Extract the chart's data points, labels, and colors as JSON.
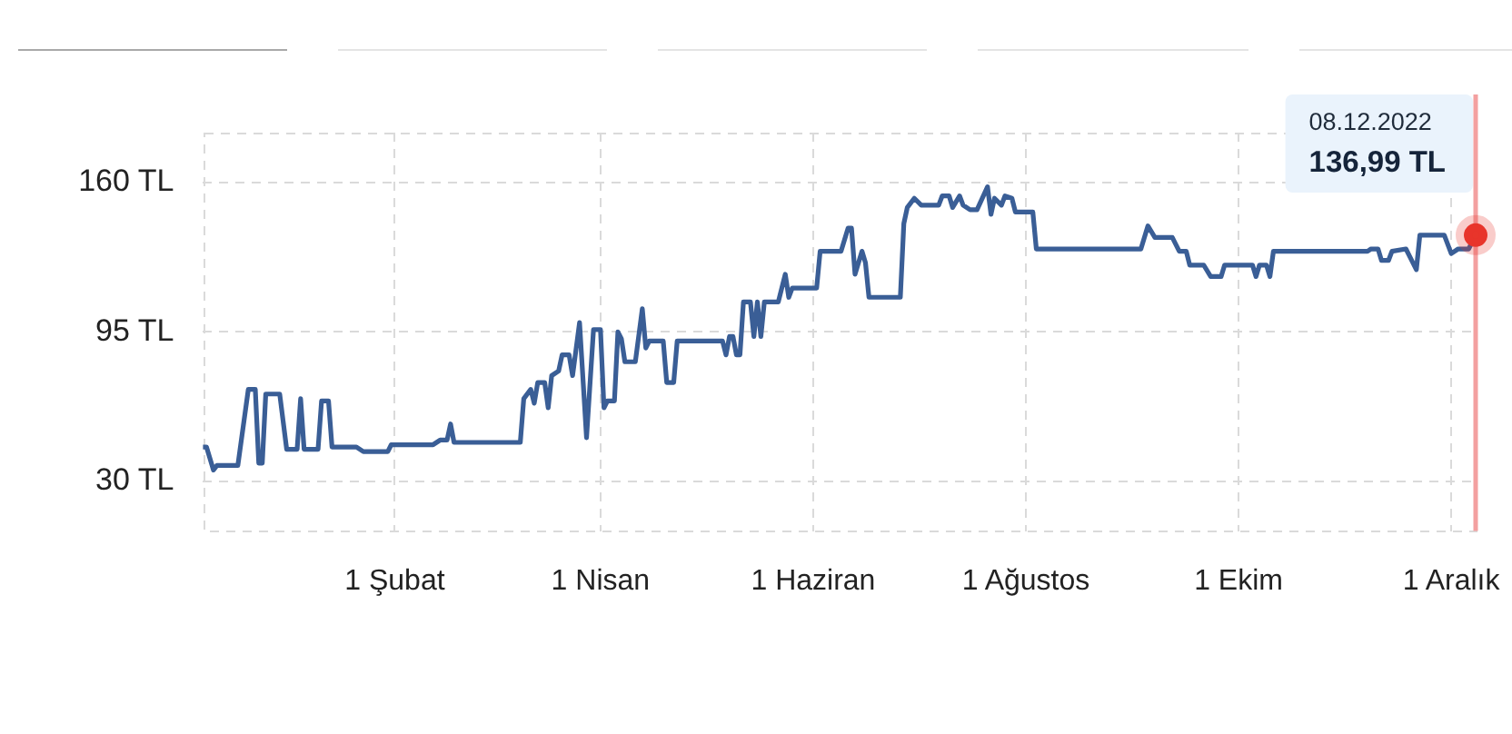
{
  "chart_data": {
    "type": "line",
    "xlim": [
      "2021-12-08",
      "2022-12-08"
    ],
    "xticks": [
      {
        "value": "2022-02-01",
        "label": "1 Şubat"
      },
      {
        "value": "2022-04-01",
        "label": "1 Nisan"
      },
      {
        "value": "2022-06-01",
        "label": "1 Haziran"
      },
      {
        "value": "2022-08-01",
        "label": "1 Ağustos"
      },
      {
        "value": "2022-10-01",
        "label": "1 Ekim"
      },
      {
        "value": "2022-12-01",
        "label": "1 Aralık"
      }
    ],
    "ylim": [
      8.5,
      181.5
    ],
    "yticks": [
      {
        "value": 30,
        "label": "30 TL"
      },
      {
        "value": 95,
        "label": "95 TL"
      },
      {
        "value": 160,
        "label": "160 TL"
      }
    ],
    "grid": true,
    "series": [
      {
        "color": "#3a5e96",
        "marker": "none",
        "x": [
          "2021-12-08",
          "2021-12-09",
          "2021-12-11",
          "2021-12-12",
          "2021-12-18",
          "2021-12-21",
          "2021-12-23",
          "2021-12-24",
          "2021-12-25",
          "2021-12-26",
          "2021-12-30",
          "2022-01-01",
          "2022-01-04",
          "2022-01-05",
          "2022-01-06",
          "2022-01-10",
          "2022-01-11",
          "2022-01-13",
          "2022-01-14",
          "2022-01-21",
          "2022-01-23",
          "2022-01-30",
          "2022-01-31",
          "2022-02-12",
          "2022-02-14",
          "2022-02-16",
          "2022-02-17",
          "2022-02-18",
          "2022-03-09",
          "2022-03-10",
          "2022-03-12",
          "2022-03-13",
          "2022-03-14",
          "2022-03-16",
          "2022-03-17",
          "2022-03-18",
          "2022-03-20",
          "2022-03-21",
          "2022-03-23",
          "2022-03-24",
          "2022-03-26",
          "2022-03-28",
          "2022-03-30",
          "2022-04-01",
          "2022-04-02",
          "2022-04-03",
          "2022-04-05",
          "2022-04-06",
          "2022-04-07",
          "2022-04-08",
          "2022-04-11",
          "2022-04-13",
          "2022-04-14",
          "2022-04-15",
          "2022-04-19",
          "2022-04-20",
          "2022-04-22",
          "2022-04-23",
          "2022-05-06",
          "2022-05-07",
          "2022-05-08",
          "2022-05-09",
          "2022-05-10",
          "2022-05-11",
          "2022-05-12",
          "2022-05-14",
          "2022-05-15",
          "2022-05-16",
          "2022-05-17",
          "2022-05-18",
          "2022-05-22",
          "2022-05-24",
          "2022-05-25",
          "2022-05-26",
          "2022-06-02",
          "2022-06-03",
          "2022-06-09",
          "2022-06-11",
          "2022-06-12",
          "2022-06-13",
          "2022-06-15",
          "2022-06-16",
          "2022-06-17",
          "2022-06-26",
          "2022-06-27",
          "2022-06-28",
          "2022-06-30",
          "2022-07-02",
          "2022-07-07",
          "2022-07-08",
          "2022-07-10",
          "2022-07-11",
          "2022-07-13",
          "2022-07-14",
          "2022-07-16",
          "2022-07-18",
          "2022-07-21",
          "2022-07-22",
          "2022-07-23",
          "2022-07-25",
          "2022-07-26",
          "2022-07-28",
          "2022-07-29",
          "2022-08-03",
          "2022-08-04",
          "2022-09-03",
          "2022-09-05",
          "2022-09-07",
          "2022-09-12",
          "2022-09-14",
          "2022-09-16",
          "2022-09-17",
          "2022-09-21",
          "2022-09-23",
          "2022-09-26",
          "2022-09-27",
          "2022-10-05",
          "2022-10-06",
          "2022-10-07",
          "2022-10-09",
          "2022-10-10",
          "2022-10-11",
          "2022-11-07",
          "2022-11-08",
          "2022-11-10",
          "2022-11-11",
          "2022-11-13",
          "2022-11-14",
          "2022-11-18",
          "2022-11-19",
          "2022-11-21",
          "2022-11-22",
          "2022-11-29",
          "2022-12-01",
          "2022-12-03",
          "2022-12-06",
          "2022-12-08"
        ],
        "values": [
          45,
          45,
          35,
          37,
          37,
          70,
          70,
          38,
          38,
          68,
          68,
          44,
          44,
          66,
          44,
          44,
          65,
          65,
          45,
          45,
          43,
          43,
          46,
          46,
          48,
          48,
          55,
          47,
          47,
          66,
          70,
          64,
          73,
          73,
          62,
          76,
          78,
          85,
          85,
          76,
          99,
          49,
          96,
          96,
          62,
          65,
          65,
          95,
          92,
          82,
          82,
          105,
          88,
          91,
          91,
          73,
          73,
          91,
          91,
          85,
          93,
          93,
          85,
          85,
          108,
          108,
          93,
          108,
          93,
          108,
          108,
          120,
          110,
          114,
          114,
          130,
          130,
          140,
          140,
          120,
          130,
          125,
          110,
          110,
          142,
          149,
          153,
          150,
          150,
          154,
          154,
          149,
          154,
          150,
          148,
          148,
          158,
          146,
          153,
          150,
          154,
          153,
          147,
          147,
          131,
          131,
          141,
          136,
          136,
          130,
          130,
          124,
          124,
          119,
          119,
          124,
          124,
          119,
          124,
          124,
          119,
          130,
          130,
          131,
          131,
          126,
          126,
          130,
          131,
          128,
          122,
          137,
          137,
          129,
          131,
          131,
          136.99
        ]
      },
      {
        "type": "scatter",
        "color": "#e8352b",
        "marker": "circle",
        "x": [
          "2022-12-08"
        ],
        "values": [
          136.99
        ]
      }
    ],
    "ref_lines": [
      {
        "axis": "x",
        "value": "2022-12-08",
        "color": "#f3a0a0"
      }
    ],
    "annotations": [
      "08.12.2022",
      "136,99 TL"
    ]
  }
}
